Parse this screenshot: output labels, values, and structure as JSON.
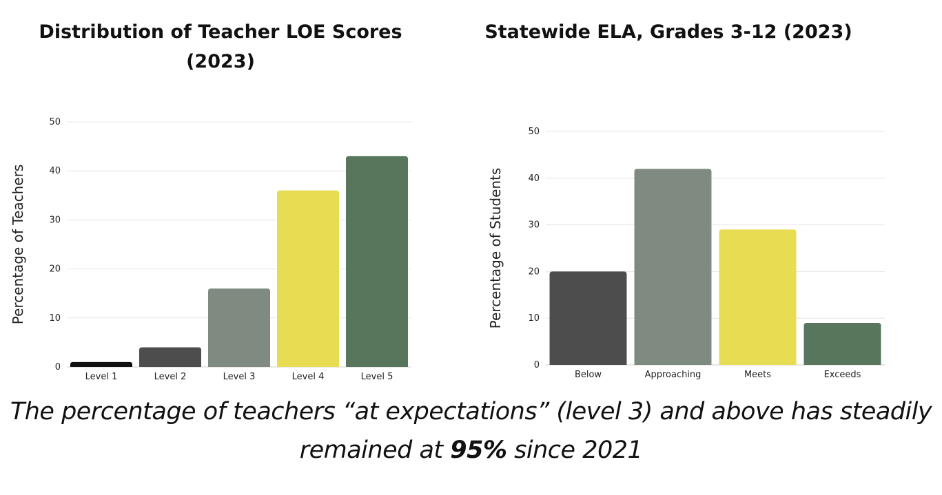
{
  "chart_data": [
    {
      "type": "bar",
      "title": "Distribution of Teacher LOE Scores (2023)",
      "xlabel": "",
      "ylabel": "Percentage of Teachers",
      "categories": [
        "Level 1",
        "Level 2",
        "Level 3",
        "Level 4",
        "Level 5"
      ],
      "values": [
        1,
        4,
        16,
        36,
        43
      ],
      "colors": [
        "#111111",
        "#4d4d4d",
        "#7f8a80",
        "#e8dc52",
        "#58765b"
      ],
      "ylim": [
        0,
        50
      ],
      "yticks": [
        0,
        10,
        20,
        30,
        40,
        50
      ],
      "grid": true,
      "legend": "none"
    },
    {
      "type": "bar",
      "title": "Statewide ELA, Grades 3-12 (2023)",
      "xlabel": "",
      "ylabel": "Percentage of Students",
      "categories": [
        "Below",
        "Approaching",
        "Meets",
        "Exceeds"
      ],
      "values": [
        20,
        42,
        29,
        9
      ],
      "colors": [
        "#4d4d4d",
        "#7f8a80",
        "#e8dc52",
        "#58765b"
      ],
      "ylim": [
        0,
        50
      ],
      "yticks": [
        0,
        10,
        20,
        30,
        40,
        50
      ],
      "grid": true,
      "legend": "none"
    }
  ],
  "caption": {
    "before": "The percentage of teachers “at expectations” (level 3) and above has steadily remained at ",
    "emphasis": "95%",
    "after": " since 2021"
  }
}
